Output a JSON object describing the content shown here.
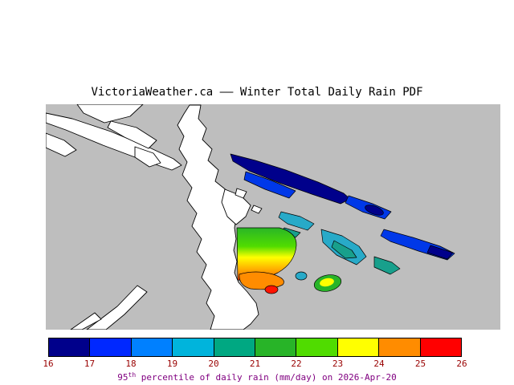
{
  "title": "VictoriaWeather.ca —— Winter Total Daily Rain PDF",
  "map": {
    "background": "#BEBEBE",
    "land_color": "#FFFFFF",
    "coastline_color": "#000000",
    "regions": {
      "navy": "#00008B",
      "blue": "#0038E8",
      "azure": "#0080FF",
      "cyan": "#28AAC8",
      "teal": "#18A08C",
      "green": "#28B428",
      "bright_green": "#50DC00",
      "yellow": "#FFFF00",
      "orange": "#FF8C00",
      "red": "#FF1400"
    }
  },
  "colorbar": {
    "colors": [
      "#00008B",
      "#0028FF",
      "#0080FF",
      "#00B4DC",
      "#00A882",
      "#28B428",
      "#50DC00",
      "#FFFF00",
      "#FF8C00",
      "#FF0000"
    ],
    "tick_labels": [
      "16",
      "17",
      "18",
      "19",
      "20",
      "21",
      "22",
      "23",
      "24",
      "25",
      "26"
    ],
    "tick_color": "#990000",
    "caption": {
      "prefix": "95",
      "sup": "th",
      "rest": " percentile of daily rain (mm/day) on 2026-Apr-20",
      "color": "#800080"
    }
  }
}
